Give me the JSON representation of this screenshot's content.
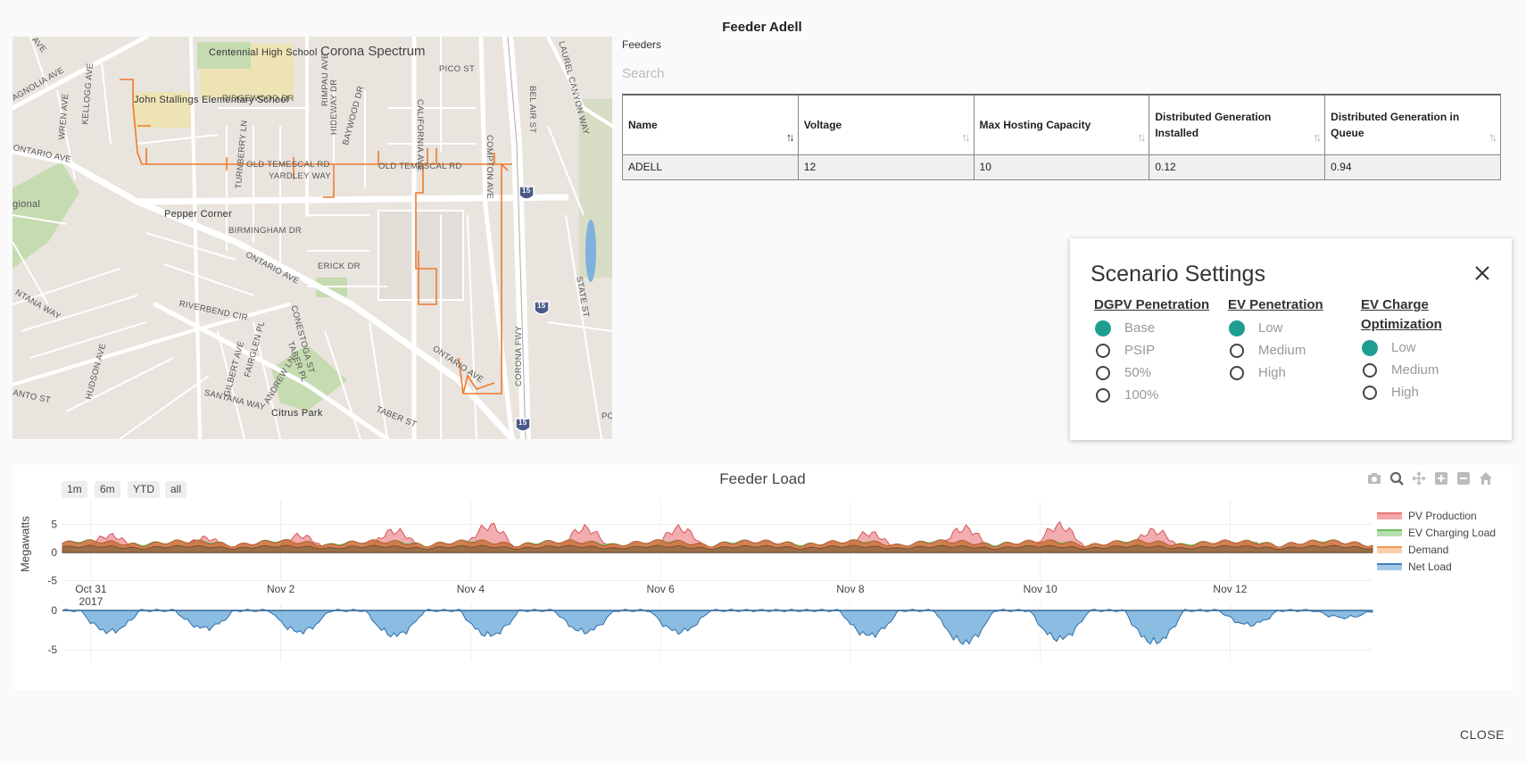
{
  "title": "Feeder Adell",
  "map": {
    "labels": {
      "area": "Corona Spectrum",
      "school1": "Centennial High School",
      "school2": "John Stallings Elementary School",
      "pepper": "Pepper Corner",
      "park": "Citrus Park",
      "regional": "gional",
      "ridgewood": "RIDGEWOOD DR",
      "temescal1": "OLD TEMESCAL RD",
      "temescal2": "OLD TEMESCAL RD",
      "yardley": "YARDLEY WAY",
      "birmingham": "BIRMINGHAM DR",
      "ontario1": "ONTARIO AVE",
      "ontario2": "ONTARIO AVE",
      "ontario3": "ONTARIO AVE",
      "erick": "ERICK DR",
      "pico": "PICO ST",
      "riverbend": "RIVERBEND CIR",
      "santana": "SANTANA WAY",
      "taber": "TABER ST",
      "magnolia": "AGNOLIA AVE",
      "california": "CALIFORNIA AVE",
      "compton": "COMPTON AVE",
      "rimpau": "RIMPAU AVE",
      "hudson": "HUDSON AVE",
      "belair": "BEL AIR ST",
      "wren": "WREN AVE",
      "kellogg": "KELLOGG AVE",
      "hideway": "HIDEWAY DR",
      "baywood": "BAYWOOD DR",
      "turnberry": "TURNBERRY LN",
      "conestoga": "CONESTOGA ST",
      "gilbert": "GILBERT AVE",
      "fairglen": "FAIRGLEN PL",
      "andrew": "ANDREW LN",
      "taberpl": "TABER PL",
      "corona": "CORONA FWY",
      "laurel": "LAUREL CANYON WAY",
      "state": "STATE ST",
      "ntana": "NTANA WAY",
      "anto": "ANTO ST",
      "ave": "AVE",
      "po": "PO",
      "shield1": "15",
      "shield2": "15",
      "shield3": "15"
    }
  },
  "feeders": {
    "label": "Feeders",
    "search_placeholder": "Search",
    "columns": [
      "Name",
      "Voltage",
      "Max Hosting Capacity",
      "Distributed Generation Installed",
      "Distributed Generation in Queue"
    ],
    "rows": [
      [
        "ADELL",
        "12",
        "10",
        "0.12",
        "0.94"
      ]
    ]
  },
  "scenario": {
    "title": "Scenario Settings",
    "groups": [
      {
        "title": "DGPV Penetration",
        "options": [
          "Base",
          "PSIP",
          "50%",
          "100%"
        ],
        "selected": 0
      },
      {
        "title": "EV Penetration",
        "options": [
          "Low",
          "Medium",
          "High"
        ],
        "selected": 0
      },
      {
        "title": "EV Charge Optimization",
        "options": [
          "Low",
          "Medium",
          "High"
        ],
        "selected": 0
      }
    ]
  },
  "range_buttons": [
    "1m",
    "6m",
    "YTD",
    "all"
  ],
  "modebar_icons": [
    "camera-icon",
    "zoom-icon",
    "pan-icon",
    "zoom-in-icon",
    "zoom-out-icon",
    "home-icon"
  ],
  "chart_data": {
    "type": "area",
    "title": "Feeder Load",
    "ylabel": "Megawatts",
    "x_ticks": [
      "Oct 31\n2017",
      "Nov 2",
      "Nov 4",
      "Nov 6",
      "Nov 8",
      "Nov 10",
      "Nov 12"
    ],
    "x_range": [
      "2017-10-30T12:00",
      "2017-11-12T04:00"
    ],
    "top_panel": {
      "ylim": [
        -6,
        9
      ],
      "yticks": [
        5,
        0,
        -5
      ]
    },
    "bottom_panel": {
      "ylim": [
        -6,
        1
      ],
      "yticks": [
        0,
        -5
      ]
    },
    "series": [
      {
        "name": "PV Production",
        "color": "#e8777a",
        "daily_peaks": [
          3.5,
          3.0,
          3.5,
          4.5,
          5.5,
          5.0,
          5.0,
          0.5,
          4.0,
          5.0,
          5.5,
          4.5,
          2.0,
          1.0
        ]
      },
      {
        "name": "EV Charging Load",
        "color": "#7bc66e",
        "daily_peaks": [
          0.3,
          0.3,
          0.3,
          0.3,
          0.3,
          0.3,
          0.3,
          0.3,
          0.3,
          0.3,
          0.3,
          0.3,
          0.3,
          0.3
        ]
      },
      {
        "name": "Demand",
        "color": "#f4a96a",
        "daily_peaks": [
          2.0,
          2.0,
          2.0,
          2.0,
          2.0,
          2.0,
          2.0,
          2.0,
          2.0,
          2.0,
          2.0,
          2.0,
          2.0,
          2.0
        ]
      },
      {
        "name": "Net Load",
        "color": "#5a9fd4",
        "daily_troughs": [
          -3.0,
          -2.5,
          -3.0,
          -3.5,
          -3.5,
          -3.0,
          -3.0,
          0.0,
          -3.5,
          -4.5,
          -4.0,
          -4.5,
          -2.0,
          -1.0
        ]
      }
    ]
  },
  "close_label": "CLOSE"
}
